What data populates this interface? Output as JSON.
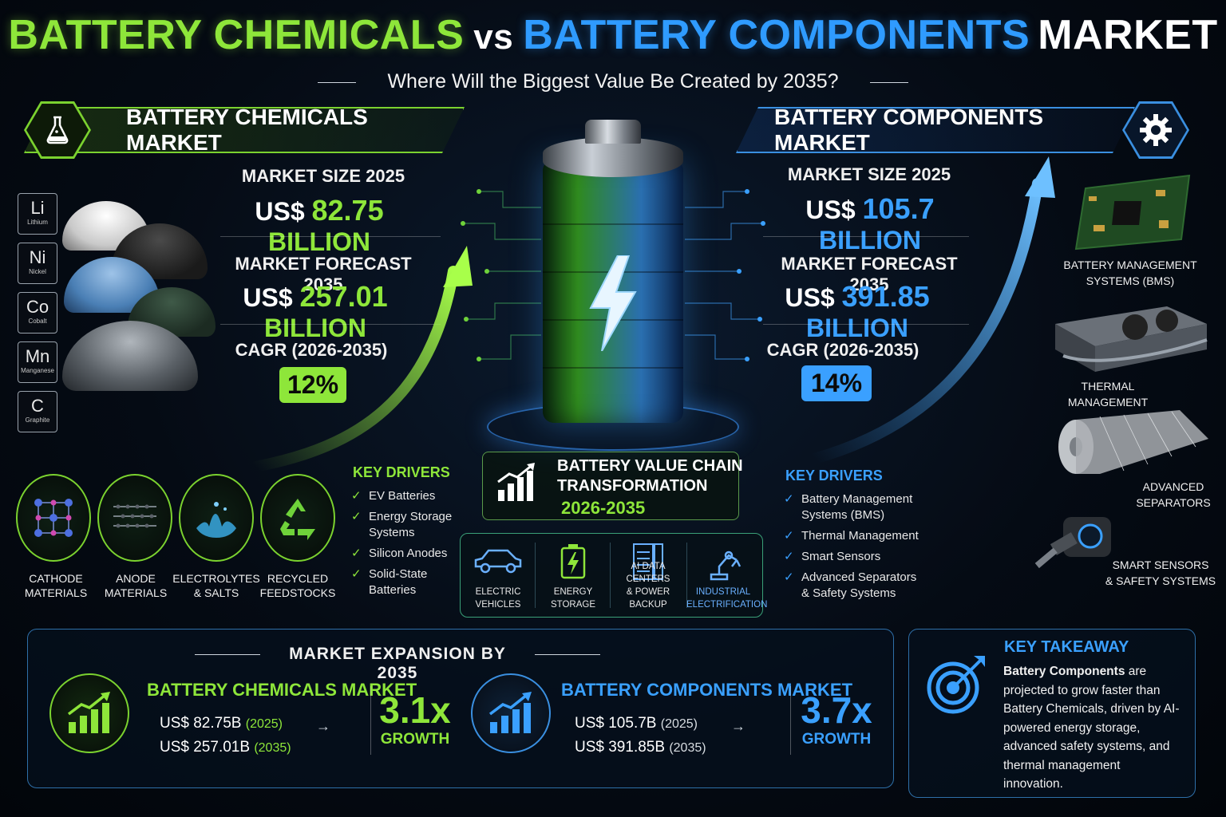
{
  "header": {
    "title_part1": "BATTERY CHEMICALS",
    "title_vs": "vs",
    "title_part2": "BATTERY COMPONENTS",
    "title_part3": "MARKET",
    "subtitle": "Where Will the Biggest Value Be Created by 2035?"
  },
  "colors": {
    "green": "#8ee63a",
    "blue": "#3aa0ff",
    "background": "#050b14"
  },
  "chemicals": {
    "banner": "BATTERY CHEMICALS MARKET",
    "icon": "flask-icon",
    "size_label": "MARKET SIZE 2025",
    "size_prefix": "US$",
    "size_value": "82.75",
    "size_unit": "BILLION",
    "forecast_label": "MARKET FORECAST 2035",
    "forecast_prefix": "US$",
    "forecast_value": "257.01",
    "forecast_unit": "BILLION",
    "cagr_label": "CAGR (2026-2035)",
    "cagr_value": "12%",
    "elements": [
      {
        "symbol": "Li",
        "name": "Lithium"
      },
      {
        "symbol": "Ni",
        "name": "Nickel"
      },
      {
        "symbol": "Co",
        "name": "Cobalt"
      },
      {
        "symbol": "Mn",
        "name": "Manganese"
      },
      {
        "symbol": "C",
        "name": "Graphite"
      }
    ],
    "materials": [
      {
        "line1": "CATHODE",
        "line2": "MATERIALS",
        "icon": "crystal-lattice-icon"
      },
      {
        "line1": "ANODE",
        "line2": "MATERIALS",
        "icon": "graphite-layers-icon"
      },
      {
        "line1": "ELECTROLYTES",
        "line2": "& SALTS",
        "icon": "liquid-splash-icon"
      },
      {
        "line1": "RECYCLED",
        "line2": "FEEDSTOCKS",
        "icon": "recycle-icon"
      }
    ],
    "drivers_title": "KEY DRIVERS",
    "drivers": [
      {
        "line1": "EV Batteries",
        "line2": ""
      },
      {
        "line1": "Energy Storage",
        "line2": "Systems"
      },
      {
        "line1": "Silicon Anodes",
        "line2": ""
      },
      {
        "line1": "Solid-State",
        "line2": "Batteries"
      }
    ]
  },
  "components": {
    "banner": "BATTERY COMPONENTS MARKET",
    "icon": "gear-icon",
    "size_label": "MARKET SIZE 2025",
    "size_prefix": "US$",
    "size_value": "105.7",
    "size_unit": "BILLION",
    "forecast_label": "MARKET FORECAST 2035",
    "forecast_prefix": "US$",
    "forecast_value": "391.85",
    "forecast_unit": "BILLION",
    "cagr_label": "CAGR (2026-2035)",
    "cagr_value": "14%",
    "drivers_title": "KEY DRIVERS",
    "drivers": [
      {
        "line1": "Battery Management",
        "line2": "Systems (BMS)"
      },
      {
        "line1": "Thermal Management",
        "line2": ""
      },
      {
        "line1": "Smart Sensors",
        "line2": ""
      },
      {
        "line1": "Advanced Separators",
        "line2": "& Safety Systems"
      }
    ],
    "products": [
      {
        "line1": "BATTERY MANAGEMENT",
        "line2": "SYSTEMS (BMS)",
        "icon": "circuit-board-icon"
      },
      {
        "line1": "THERMAL",
        "line2": "MANAGEMENT",
        "icon": "heatsink-icon"
      },
      {
        "line1": "ADVANCED",
        "line2": "SEPARATORS",
        "icon": "separator-roll-icon"
      },
      {
        "line1": "SMART SENSORS",
        "line2": "& SAFETY SYSTEMS",
        "icon": "sensor-icon"
      }
    ]
  },
  "center": {
    "battery_icon": "lightning-bolt-icon",
    "value_chain_line1": "BATTERY VALUE CHAIN",
    "value_chain_line2": "TRANSFORMATION",
    "value_chain_years": "2026-2035",
    "applications": [
      {
        "line1": "ELECTRIC",
        "line2": "VEHICLES",
        "icon": "car-icon"
      },
      {
        "line1": "ENERGY",
        "line2": "STORAGE",
        "icon": "battery-icon"
      },
      {
        "line1": "AI DATA CENTERS",
        "line2": "& POWER BACKUP",
        "icon": "server-rack-icon"
      },
      {
        "line1": "INDUSTRIAL",
        "line2": "ELECTRIFICATION",
        "icon": "robot-arm-icon"
      }
    ]
  },
  "expansion": {
    "title": "MARKET EXPANSION BY 2035",
    "chemicals": {
      "name": "BATTERY CHEMICALS MARKET",
      "val_2025": "US$ 82.75B",
      "yr_2025": "(2025)",
      "val_2035": "US$ 257.01B",
      "yr_2035": "(2035)",
      "multiple": "3.1x",
      "growth": "GROWTH"
    },
    "components": {
      "name": "BATTERY COMPONENTS MARKET",
      "val_2025": "US$ 105.7B",
      "yr_2025": "(2025)",
      "val_2035": "US$ 391.85B",
      "yr_2035": "(2035)",
      "multiple": "3.7x",
      "growth": "GROWTH"
    },
    "arrow": "→"
  },
  "takeaway": {
    "title": "KEY TAKEAWAY",
    "text_bold": "Battery Components",
    "text_rest": " are projected to grow faster than Battery Chemicals, driven by AI-powered energy storage, advanced safety systems, and thermal management innovation."
  }
}
